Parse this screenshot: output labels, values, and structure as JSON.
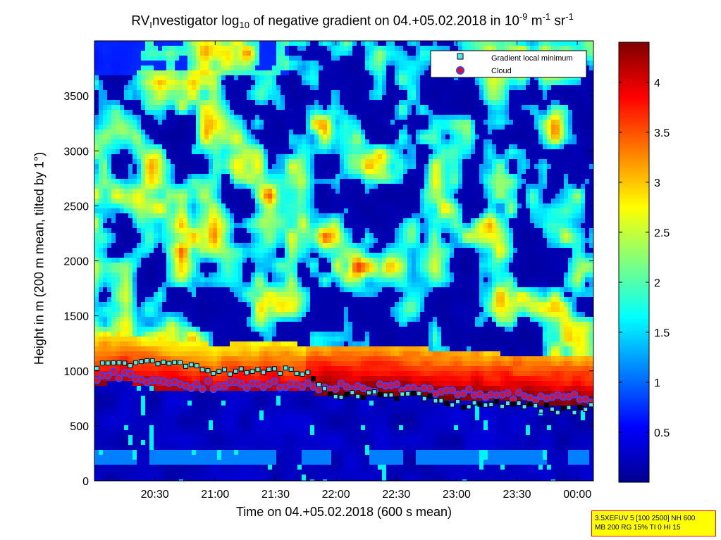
{
  "title": {
    "prefix": "RV",
    "sub_i": "I",
    "middle": "nvestigator log",
    "sub_10": "10",
    "after": " of negative gradient on 04.+05.02.2018 in 10",
    "exp1": "-9",
    "unit_m": " m",
    "exp2": "-1",
    "unit_sr": " sr",
    "exp3": "-1"
  },
  "info_box": {
    "line1": "3.5XEFUV 5 [100 2500] NH 600",
    "line2": "MB 200 RG 15% TI 0 HI 15"
  },
  "chart_data": {
    "type": "heatmap",
    "xlabel": "Time on 04.+05.02.2018 (600 s mean)",
    "ylabel": "Height in m (200 m mean, tilted by 1°)",
    "x_ticks": [
      "20:30",
      "21:00",
      "21:30",
      "22:00",
      "22:30",
      "23:00",
      "23:30",
      "00:00"
    ],
    "x_tick_hours": [
      20.5,
      21.0,
      21.5,
      22.0,
      22.5,
      23.0,
      23.5,
      24.0
    ],
    "xlim_hours": [
      20.0,
      24.133
    ],
    "y_ticks": [
      0,
      500,
      1000,
      1500,
      2000,
      2500,
      3000,
      3500
    ],
    "y_tick_labels": [
      "0",
      "500",
      "1000",
      "1500",
      "2000",
      "2500",
      "3000",
      "3500"
    ],
    "ylim": [
      0,
      4000
    ],
    "colorbar": {
      "range": [
        0,
        4.4
      ],
      "ticks": [
        0.5,
        1,
        1.5,
        2,
        2.5,
        3,
        3.5,
        4
      ],
      "tick_labels": [
        "0.5",
        "1",
        "1.5",
        "2",
        "2.5",
        "3",
        "3.5",
        "4"
      ],
      "colormap": "jet"
    },
    "legend": {
      "placement": "top-right",
      "entries": [
        {
          "label": "Gradient local minimum",
          "marker": "square",
          "color": "#4fe8e8"
        },
        {
          "label": "Cloud",
          "marker": "circle",
          "color": "#e01020",
          "edge": "#4040ff"
        }
      ]
    },
    "series": [
      {
        "name": "Cloud",
        "x": [
          20.02,
          20.25,
          20.5,
          20.75,
          21.0,
          21.25,
          21.5,
          21.75,
          22.0,
          22.25,
          22.5,
          22.75,
          23.0,
          23.25,
          23.5,
          23.75,
          24.0,
          24.12
        ],
        "y": [
          940,
          960,
          900,
          880,
          860,
          870,
          880,
          860,
          850,
          850,
          840,
          820,
          800,
          780,
          770,
          760,
          750,
          740
        ]
      },
      {
        "name": "Gradient local minimum",
        "x": [
          20.02,
          20.25,
          20.5,
          20.75,
          21.0,
          21.25,
          21.5,
          21.75,
          22.0,
          22.25,
          22.5,
          22.75,
          23.0,
          23.25,
          23.5,
          23.75,
          24.0,
          24.12
        ],
        "y": [
          1050,
          1060,
          1080,
          1070,
          1000,
          1000,
          1010,
          980,
          780,
          790,
          770,
          760,
          700,
          700,
          690,
          660,
          640,
          670
        ]
      }
    ]
  }
}
